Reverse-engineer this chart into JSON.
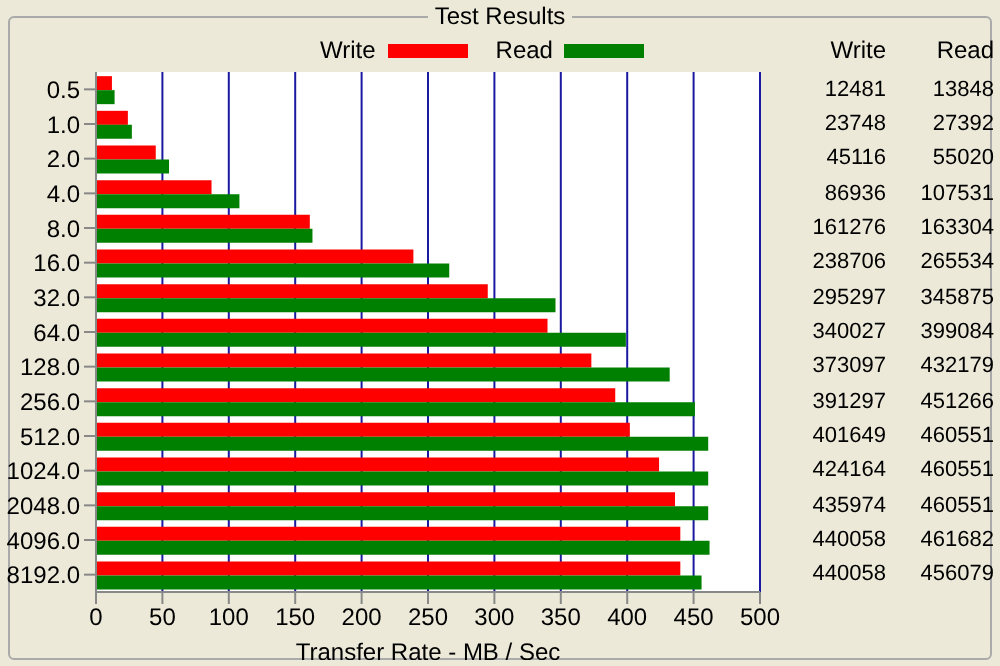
{
  "chart_data": [
    {
      "type": "bar",
      "title": "Test Results",
      "orientation": "horizontal",
      "xlabel": "Transfer Rate - MB / Sec",
      "categories": [
        "0.5",
        "1.0",
        "2.0",
        "4.0",
        "8.0",
        "16.0",
        "32.0",
        "64.0",
        "128.0",
        "256.0",
        "512.0",
        "1024.0",
        "2048.0",
        "4096.0",
        "8192.0"
      ],
      "series": [
        {
          "name": "Write",
          "color": "#ff0000",
          "values": [
            12,
            24,
            45,
            87,
            161,
            239,
            295,
            340,
            373,
            391,
            402,
            424,
            436,
            440,
            440
          ]
        },
        {
          "name": "Read",
          "color": "#008000",
          "values": [
            14,
            27,
            55,
            108,
            163,
            266,
            346,
            399,
            432,
            451,
            461,
            461,
            461,
            462,
            456
          ]
        }
      ],
      "xlim": [
        0,
        500
      ],
      "xticks": [
        0,
        50,
        100,
        150,
        200,
        250,
        300,
        350,
        400,
        450,
        500
      ],
      "grid": "x",
      "legend": "top"
    },
    {
      "type": "other",
      "annotations": [
        "Write",
        "Read",
        "12481",
        "13848",
        "23748",
        "27392",
        "45116",
        "55020",
        "86936",
        "107531",
        "161276",
        "163304",
        "238706",
        "265534",
        "295297",
        "345875",
        "340027",
        "399084",
        "373097",
        "432179",
        "391297",
        "451266",
        "401649",
        "460551",
        "424164",
        "460551",
        "435974",
        "460551",
        "440058",
        "461682",
        "440058",
        "456079"
      ]
    }
  ]
}
